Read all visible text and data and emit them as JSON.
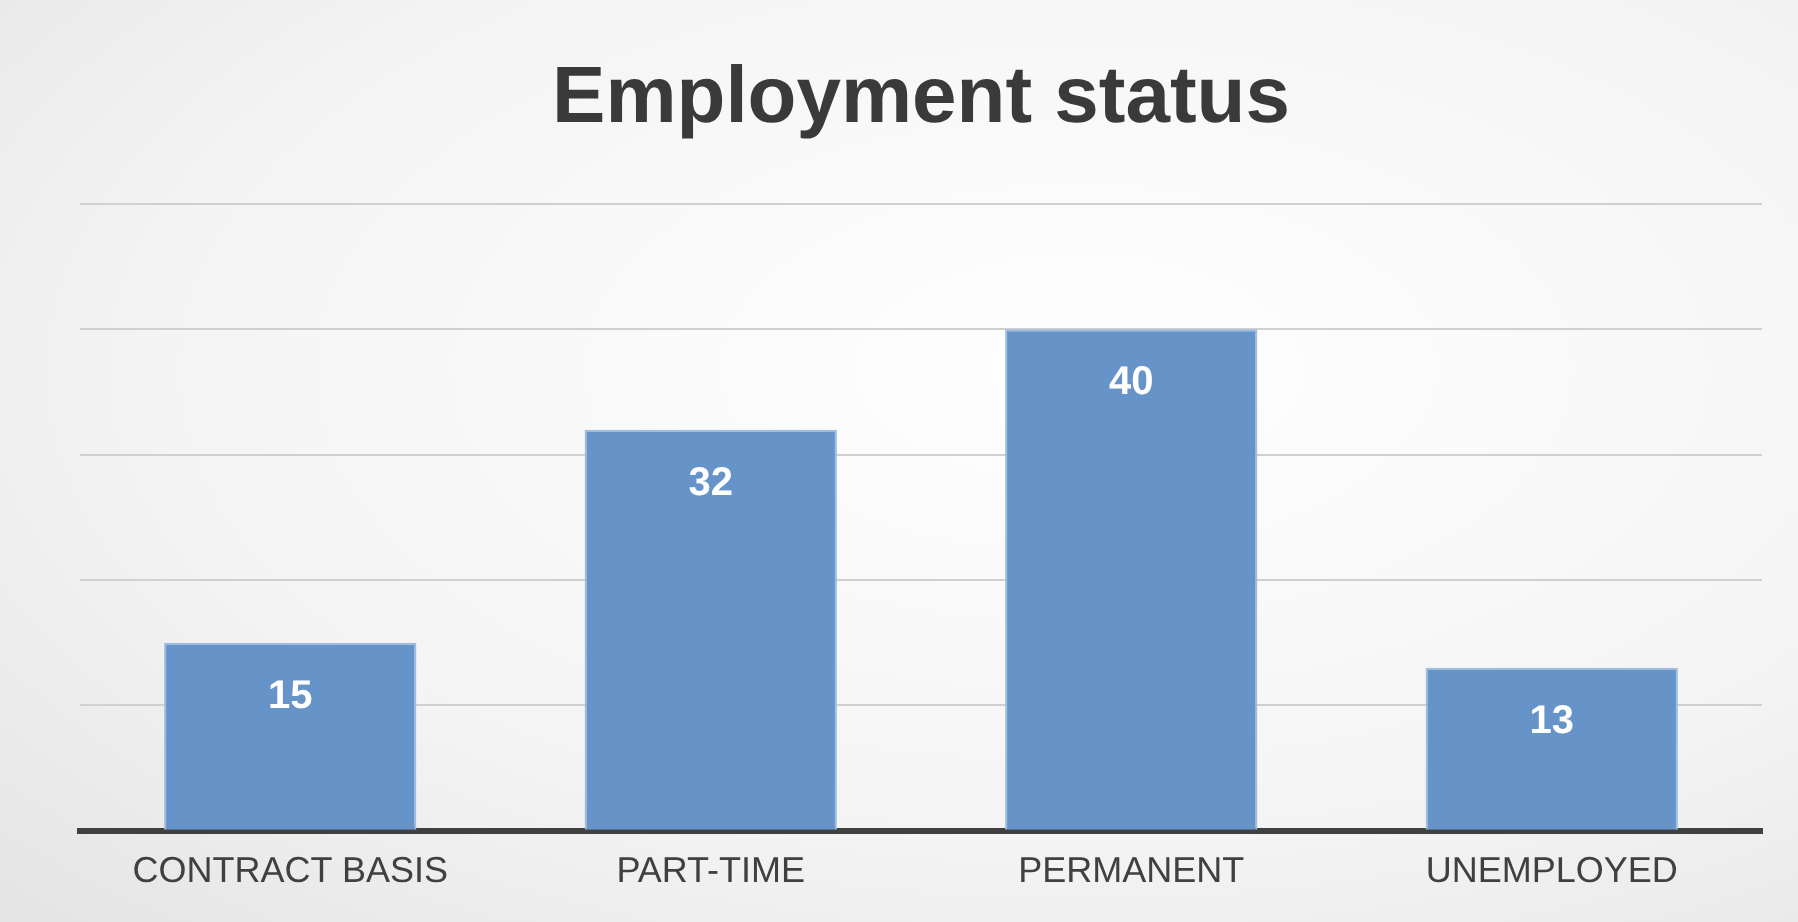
{
  "chart_data": {
    "type": "bar",
    "title": "Employment status",
    "categories": [
      "CONTRACT BASIS",
      "PART-TIME",
      "PERMANENT",
      "UNEMPLOYED"
    ],
    "values": [
      15,
      32,
      40,
      13
    ],
    "color": "#6794c8",
    "ylim": [
      0,
      50
    ],
    "yticks": [
      0,
      {
        "value": 10,
        "label": null
      },
      {
        "value": 20,
        "label": null
      },
      {
        "value": 30,
        "label": null
      },
      {
        "value": 40,
        "label": null
      },
      {
        "value": 50,
        "label": null
      }
    ],
    "grid": "y",
    "tick_labels": "x",
    "data_labels": true,
    "legend": false
  }
}
